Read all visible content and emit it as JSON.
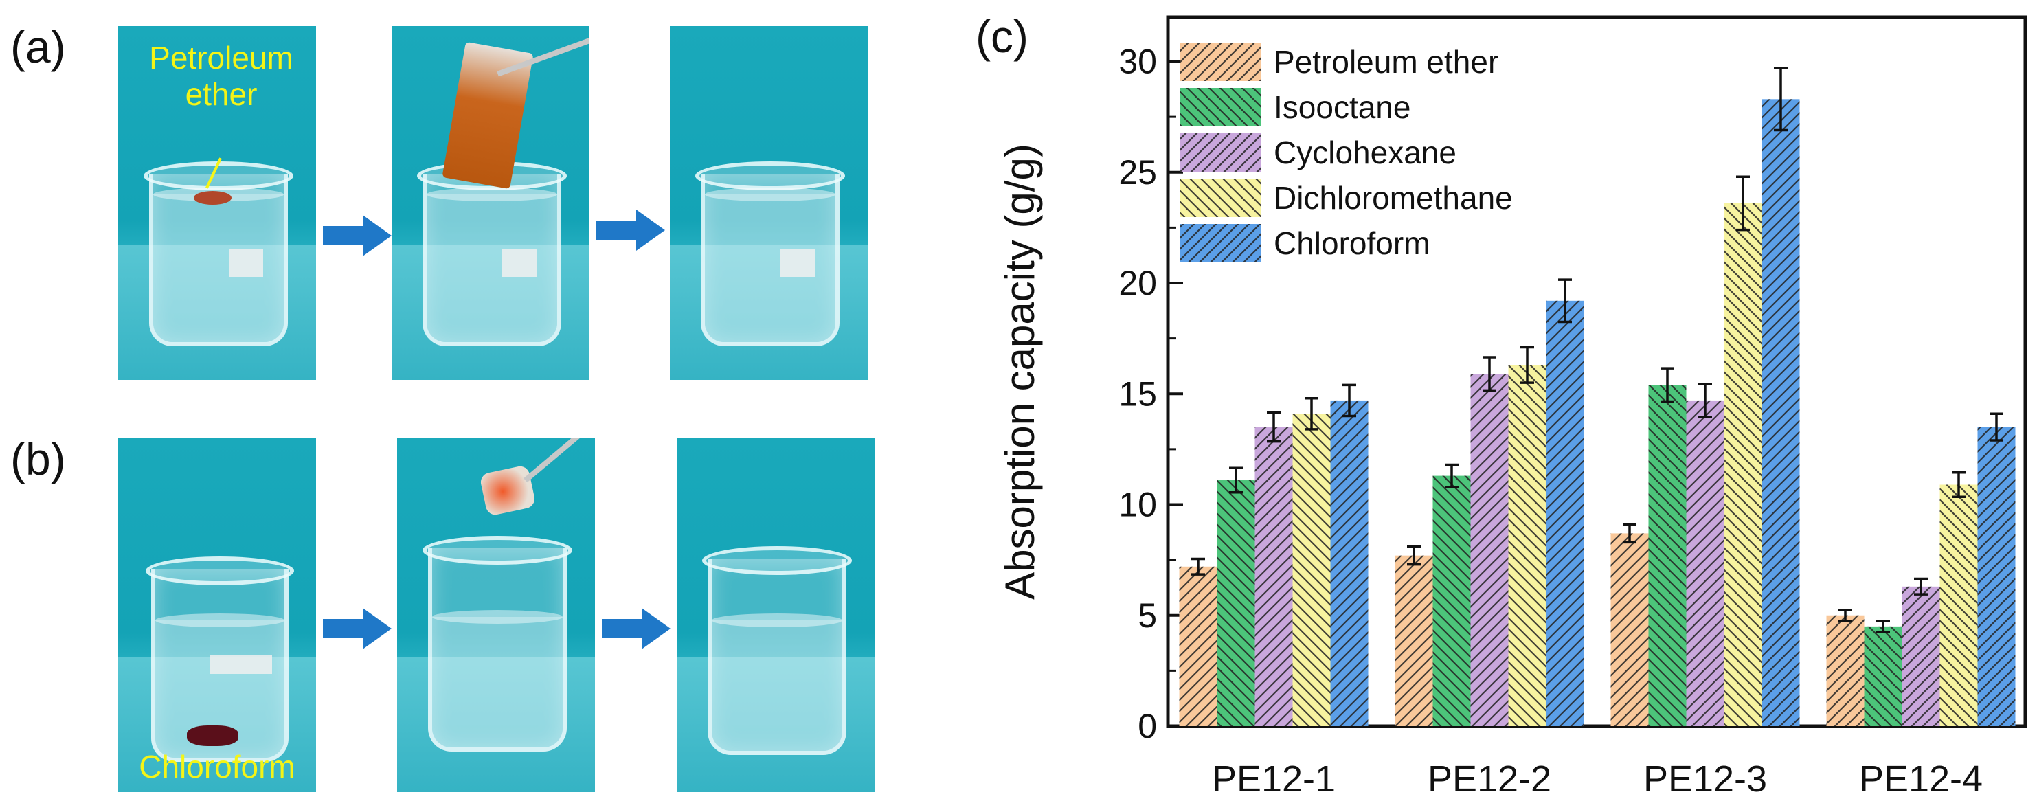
{
  "panels": {
    "a": {
      "label": "(a)",
      "annotation_line1": "Petroleum",
      "annotation_line2": "ether"
    },
    "b": {
      "label": "(b)",
      "annotation": "Chloroform"
    },
    "c": {
      "label": "(c)"
    }
  },
  "colors": {
    "Petroleum ether": "#f9c89a",
    "Isooctane": "#4cc47a",
    "Cyclohexane": "#c9a7dc",
    "Dichloromethane": "#f7f3a0",
    "Chloroform": "#5b9fe8",
    "arrow": "#1f78c8",
    "photo_text": "#f4f417"
  },
  "chart_data": {
    "type": "bar",
    "title": "",
    "xlabel": "",
    "ylabel": "Absorption capacity (g/g)",
    "ylim": [
      0,
      32
    ],
    "yticks": [
      "0",
      "5",
      "10",
      "15",
      "20",
      "25",
      "30"
    ],
    "categories": [
      "PE12-1",
      "PE12-2",
      "PE12-3",
      "PE12-4"
    ],
    "legend_position": "top-left",
    "series": [
      {
        "name": "Petroleum ether",
        "values": [
          7.2,
          7.7,
          8.7,
          5.0
        ],
        "errors": [
          0.35,
          0.4,
          0.4,
          0.25
        ]
      },
      {
        "name": "Isooctane",
        "values": [
          11.1,
          11.3,
          15.4,
          4.5
        ],
        "errors": [
          0.55,
          0.5,
          0.75,
          0.25
        ]
      },
      {
        "name": "Cyclohexane",
        "values": [
          13.5,
          15.9,
          14.7,
          6.3
        ],
        "errors": [
          0.65,
          0.75,
          0.75,
          0.35
        ]
      },
      {
        "name": "Dichloromethane",
        "values": [
          14.1,
          16.3,
          23.6,
          10.9
        ],
        "errors": [
          0.7,
          0.8,
          1.2,
          0.55
        ]
      },
      {
        "name": "Chloroform",
        "values": [
          14.7,
          19.2,
          28.3,
          13.5
        ],
        "errors": [
          0.7,
          0.95,
          1.4,
          0.6
        ]
      }
    ]
  }
}
